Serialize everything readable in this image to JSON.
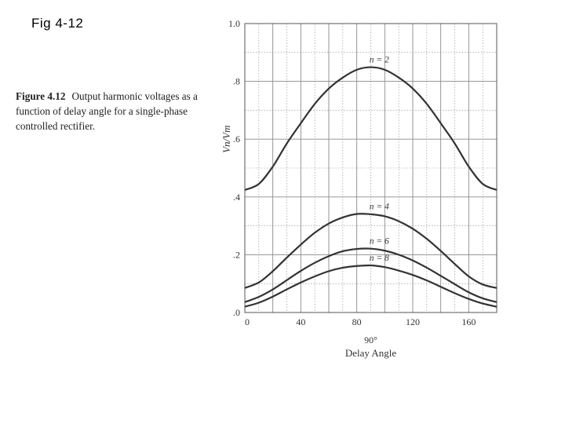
{
  "slide": {
    "title": "Fig   4-12"
  },
  "caption": {
    "figure_label": "Figure 4.12",
    "text": "Output harmonic voltages as a function of delay angle for a single-phase controlled rectifier."
  },
  "chart_data": {
    "type": "line",
    "title": "",
    "xlabel": "Delay Angle",
    "xlabel_marker": "90°",
    "ylabel": "Vn/Vm",
    "xlim": [
      0,
      180
    ],
    "ylim": [
      0,
      1.0
    ],
    "x_ticks": [
      0,
      40,
      80,
      120,
      160
    ],
    "x_tick_labels": [
      "0",
      "40",
      "80",
      "120",
      "160"
    ],
    "y_ticks": [
      0,
      0.2,
      0.4,
      0.6,
      0.8,
      1.0
    ],
    "y_tick_labels": [
      ".0",
      ".2",
      ".4",
      ".6",
      ".8",
      "1.0"
    ],
    "grid": true,
    "x": [
      0,
      10,
      20,
      30,
      40,
      50,
      60,
      70,
      80,
      90,
      100,
      110,
      120,
      130,
      140,
      150,
      160,
      170,
      180
    ],
    "series": [
      {
        "name": "n = 2",
        "values": [
          0.424,
          0.445,
          0.505,
          0.585,
          0.655,
          0.722,
          0.775,
          0.813,
          0.84,
          0.849,
          0.84,
          0.813,
          0.775,
          0.722,
          0.655,
          0.585,
          0.505,
          0.445,
          0.424
        ]
      },
      {
        "name": "n = 4",
        "values": [
          0.085,
          0.104,
          0.143,
          0.19,
          0.235,
          0.276,
          0.308,
          0.329,
          0.341,
          0.34,
          0.333,
          0.316,
          0.29,
          0.255,
          0.213,
          0.168,
          0.125,
          0.097,
          0.085
        ]
      },
      {
        "name": "n = 6",
        "values": [
          0.036,
          0.054,
          0.08,
          0.112,
          0.144,
          0.172,
          0.195,
          0.212,
          0.22,
          0.221,
          0.214,
          0.2,
          0.18,
          0.155,
          0.127,
          0.098,
          0.07,
          0.049,
          0.036
        ]
      },
      {
        "name": "n = 8",
        "values": [
          0.02,
          0.034,
          0.055,
          0.08,
          0.104,
          0.125,
          0.143,
          0.155,
          0.161,
          0.163,
          0.157,
          0.145,
          0.13,
          0.111,
          0.089,
          0.067,
          0.047,
          0.031,
          0.02
        ]
      }
    ],
    "curve_color": "#333333"
  }
}
